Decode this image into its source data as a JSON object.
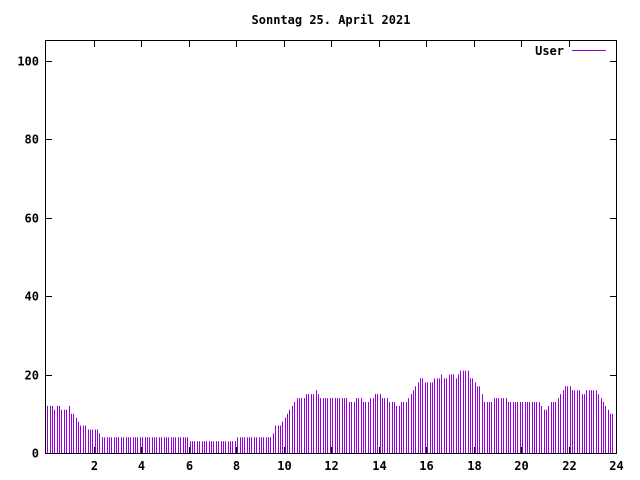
{
  "chart_data": {
    "type": "bar",
    "title": "Sonntag 25. April 2021",
    "xlabel": "",
    "ylabel": "",
    "xlim": [
      0,
      24
    ],
    "ylim": [
      0,
      105
    ],
    "xticks": [
      2,
      4,
      6,
      8,
      10,
      12,
      14,
      16,
      18,
      20,
      22,
      24
    ],
    "yticks": [
      0,
      20,
      40,
      60,
      80,
      100
    ],
    "grid": false,
    "legend": "top-right",
    "series": [
      {
        "name": "User",
        "color": "#9400d3",
        "step_hours": 0.1,
        "values": [
          12,
          12,
          12,
          11,
          12,
          12,
          11,
          11,
          11,
          12,
          10,
          10,
          9,
          8,
          7,
          7,
          7,
          6,
          6,
          6,
          6,
          6,
          5,
          4,
          4,
          4,
          4,
          4,
          4,
          4,
          4,
          4,
          4,
          4,
          4,
          4,
          4,
          4,
          4,
          4,
          4,
          4,
          4,
          4,
          4,
          4,
          4,
          4,
          4,
          4,
          4,
          4,
          4,
          4,
          4,
          4,
          4,
          4,
          4,
          4,
          3,
          3,
          3,
          3,
          3,
          3,
          3,
          3,
          3,
          3,
          3,
          3,
          3,
          3,
          3,
          3,
          3,
          3,
          3,
          3,
          4,
          4,
          4,
          4,
          4,
          4,
          4,
          4,
          4,
          4,
          4,
          4,
          4,
          4,
          4,
          5,
          7,
          7,
          7,
          8,
          9,
          10,
          11,
          12,
          13,
          14,
          14,
          14,
          14,
          15,
          15,
          15,
          15,
          16,
          15,
          14,
          14,
          14,
          14,
          14,
          14,
          14,
          14,
          14,
          14,
          14,
          14,
          13,
          13,
          13,
          14,
          14,
          14,
          13,
          13,
          13,
          14,
          14,
          15,
          15,
          15,
          14,
          14,
          14,
          13,
          13,
          13,
          12,
          12,
          13,
          13,
          13,
          14,
          15,
          16,
          17,
          18,
          19,
          19,
          18,
          18,
          18,
          18,
          19,
          19,
          19,
          20,
          19,
          19,
          20,
          20,
          20,
          19,
          20,
          21,
          21,
          21,
          21,
          19,
          19,
          18,
          17,
          17,
          15,
          13,
          13,
          13,
          13,
          14,
          14,
          14,
          14,
          14,
          14,
          13,
          13,
          13,
          13,
          13,
          13,
          13,
          13,
          13,
          13,
          13,
          13,
          13,
          13,
          12,
          11,
          11,
          12,
          13,
          13,
          13,
          14,
          15,
          16,
          17,
          17,
          17,
          16,
          16,
          16,
          16,
          15,
          15,
          16,
          16,
          16,
          16,
          16,
          15,
          14,
          13,
          12,
          11,
          10,
          10
        ]
      }
    ]
  }
}
